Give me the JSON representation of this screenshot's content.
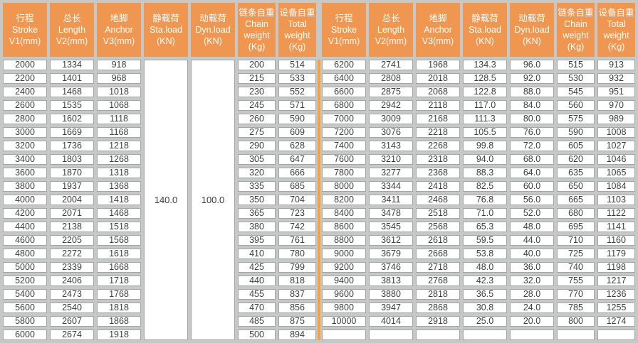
{
  "colors": {
    "bg": "#C6C8C7",
    "header_bg": "#EF9750",
    "header_text": "#FFFFFF",
    "cell_bg": "#FFFFFF",
    "cell_border": "#A5A5A5",
    "body_text": "#3C3C3C",
    "divider": "#F7A045"
  },
  "headers": [
    {
      "id": "stroke",
      "lines": [
        "行程",
        "Stroke",
        "V1(mm)"
      ]
    },
    {
      "id": "length",
      "lines": [
        "总长",
        "Length",
        "V2(mm)"
      ]
    },
    {
      "id": "anchor",
      "lines": [
        "地脚",
        "Anchor",
        "V3(mm)"
      ]
    },
    {
      "id": "sta-load",
      "lines": [
        "静载荷",
        "Sta.load",
        "(KN)"
      ]
    },
    {
      "id": "dyn-load",
      "lines": [
        "动载荷",
        "Dyn.load",
        "(KN)"
      ]
    },
    {
      "id": "chain-weight",
      "lines": [
        "链条自重",
        "Chain",
        "weight",
        "(Kg)"
      ]
    },
    {
      "id": "total-weight",
      "lines": [
        "设备自重",
        "Total",
        "weight",
        "(Kg)"
      ]
    }
  ],
  "left_table": {
    "sta_load": "140.0",
    "dyn_load": "100.0",
    "rows": [
      [
        "2000",
        "1334",
        "918",
        "200",
        "514"
      ],
      [
        "2200",
        "1401",
        "968",
        "215",
        "533"
      ],
      [
        "2400",
        "1468",
        "1018",
        "230",
        "552"
      ],
      [
        "2600",
        "1535",
        "1068",
        "245",
        "571"
      ],
      [
        "2800",
        "1602",
        "1118",
        "260",
        "590"
      ],
      [
        "3000",
        "1669",
        "1168",
        "275",
        "609"
      ],
      [
        "3200",
        "1736",
        "1218",
        "290",
        "628"
      ],
      [
        "3400",
        "1803",
        "1268",
        "305",
        "647"
      ],
      [
        "3600",
        "1870",
        "1318",
        "320",
        "666"
      ],
      [
        "3800",
        "1937",
        "1368",
        "335",
        "685"
      ],
      [
        "4000",
        "2004",
        "1418",
        "350",
        "704"
      ],
      [
        "4200",
        "2071",
        "1468",
        "365",
        "723"
      ],
      [
        "4400",
        "2138",
        "1518",
        "380",
        "742"
      ],
      [
        "4600",
        "2205",
        "1568",
        "395",
        "761"
      ],
      [
        "4800",
        "2272",
        "1618",
        "410",
        "780"
      ],
      [
        "5000",
        "2339",
        "1668",
        "425",
        "799"
      ],
      [
        "5200",
        "2406",
        "1718",
        "440",
        "818"
      ],
      [
        "5400",
        "2473",
        "1768",
        "455",
        "837"
      ],
      [
        "5600",
        "2540",
        "1818",
        "470",
        "856"
      ],
      [
        "5800",
        "2607",
        "1868",
        "485",
        "875"
      ],
      [
        "6000",
        "2674",
        "1918",
        "500",
        "894"
      ]
    ]
  },
  "right_table": {
    "rows": [
      [
        "6200",
        "2741",
        "1968",
        "134.3",
        "96.0",
        "515",
        "913"
      ],
      [
        "6400",
        "2808",
        "2018",
        "128.5",
        "92.0",
        "530",
        "932"
      ],
      [
        "6600",
        "2875",
        "2068",
        "122.8",
        "88.0",
        "545",
        "951"
      ],
      [
        "6800",
        "2942",
        "2118",
        "117.0",
        "84.0",
        "560",
        "970"
      ],
      [
        "7000",
        "3009",
        "2168",
        "111.3",
        "80.0",
        "575",
        "989"
      ],
      [
        "7200",
        "3076",
        "2218",
        "105.5",
        "76.0",
        "590",
        "1008"
      ],
      [
        "7400",
        "3143",
        "2268",
        "99.8",
        "72.0",
        "605",
        "1027"
      ],
      [
        "7600",
        "3210",
        "2318",
        "94.0",
        "68.0",
        "620",
        "1046"
      ],
      [
        "7800",
        "3277",
        "2368",
        "88.3",
        "64.0",
        "635",
        "1065"
      ],
      [
        "8000",
        "3344",
        "2418",
        "82.5",
        "60.0",
        "650",
        "1084"
      ],
      [
        "8200",
        "3411",
        "2468",
        "76.8",
        "56.0",
        "665",
        "1103"
      ],
      [
        "8400",
        "3478",
        "2518",
        "71.0",
        "52.0",
        "680",
        "1122"
      ],
      [
        "8600",
        "3545",
        "2568",
        "65.3",
        "48.0",
        "695",
        "1141"
      ],
      [
        "8800",
        "3612",
        "2618",
        "59.5",
        "44.0",
        "710",
        "1160"
      ],
      [
        "9000",
        "3679",
        "2668",
        "53.8",
        "40.0",
        "725",
        "1179"
      ],
      [
        "9200",
        "3746",
        "2718",
        "48.0",
        "36.0",
        "740",
        "1198"
      ],
      [
        "9400",
        "3813",
        "2768",
        "42.3",
        "32.0",
        "755",
        "1217"
      ],
      [
        "9600",
        "3880",
        "2818",
        "36.5",
        "28.0",
        "770",
        "1236"
      ],
      [
        "9800",
        "3947",
        "2868",
        "30.8",
        "24.0",
        "785",
        "1255"
      ],
      [
        "10000",
        "4014",
        "2918",
        "25.0",
        "20.0",
        "800",
        "1274"
      ],
      [
        "",
        "",
        "",
        "",
        "",
        "",
        ""
      ]
    ]
  }
}
